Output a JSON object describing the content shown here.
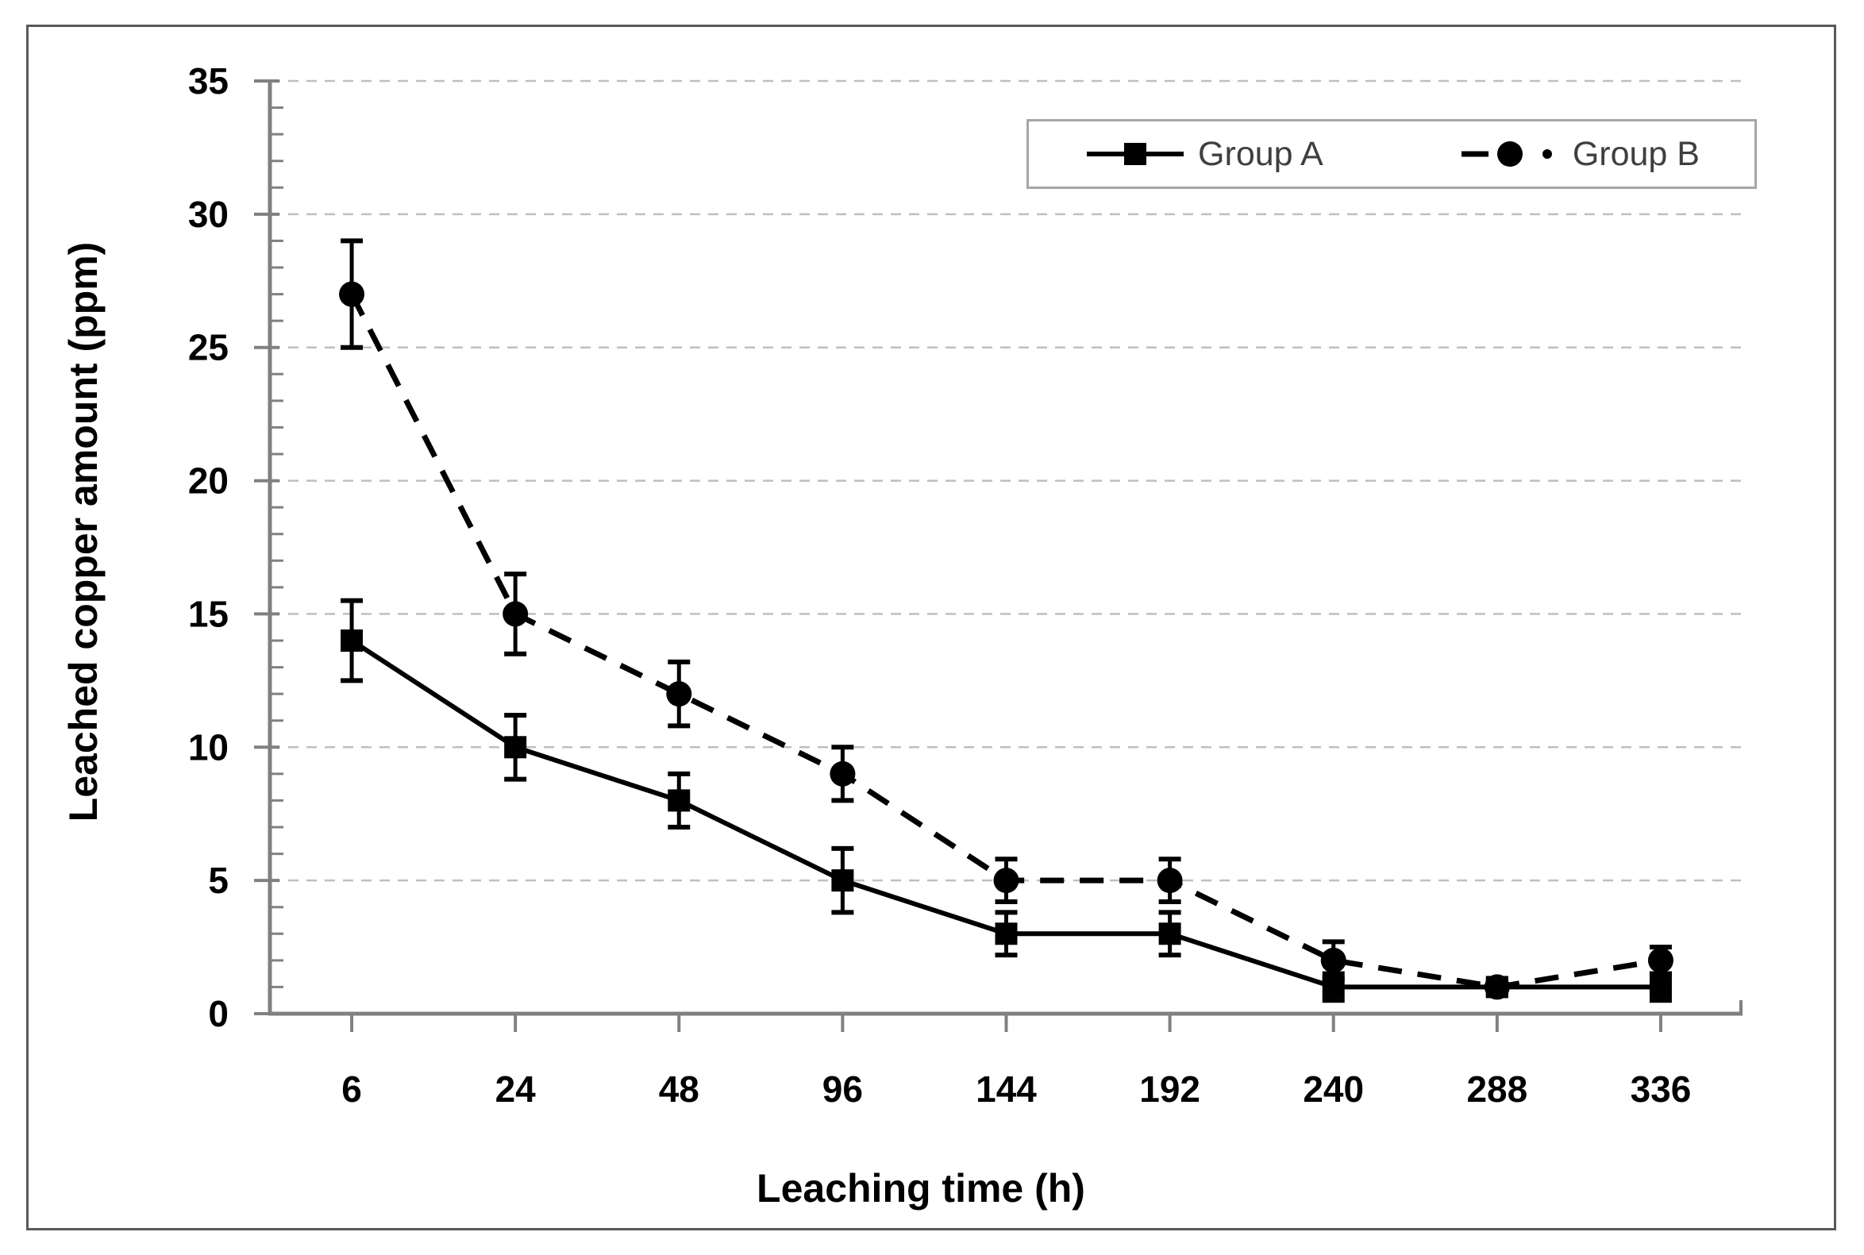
{
  "figure": {
    "background_color": "#ffffff",
    "frame_border_color": "#595959"
  },
  "chart_data": {
    "type": "line",
    "title": "",
    "xlabel": "Leaching time (h)",
    "ylabel": "Leached copper amount (ppm)",
    "categories": [
      6,
      24,
      48,
      96,
      144,
      192,
      240,
      288,
      336
    ],
    "x_tick_labels": [
      "6",
      "24",
      "48",
      "96",
      "144",
      "192",
      "240",
      "288",
      "336"
    ],
    "y_axis": {
      "min": 0,
      "max": 35,
      "major_step": 5,
      "minor_step": 1,
      "tick_labels": [
        "0",
        "5",
        "10",
        "15",
        "20",
        "25",
        "30",
        "35"
      ]
    },
    "grid": {
      "horizontal_dashed": true,
      "color": "#bfbfbf"
    },
    "axis_color": "#808080",
    "series": [
      {
        "name": "Group A",
        "line_style": "solid",
        "marker": "square",
        "color": "#000000",
        "values": [
          14,
          10,
          8,
          5,
          3,
          3,
          1,
          1,
          1
        ],
        "error_bars": [
          1.5,
          1.2,
          1.0,
          1.2,
          0.8,
          0.8,
          0.5,
          0.3,
          0.5
        ]
      },
      {
        "name": "Group B",
        "line_style": "dashed",
        "marker": "circle",
        "color": "#000000",
        "values": [
          27,
          15,
          12,
          9,
          5,
          5,
          2,
          1,
          2
        ],
        "error_bars": [
          2.0,
          1.5,
          1.2,
          1.0,
          0.8,
          0.8,
          0.7,
          0.3,
          0.5
        ]
      }
    ],
    "legend": {
      "position": "top-right",
      "border_color": "#a6a6a6"
    }
  }
}
